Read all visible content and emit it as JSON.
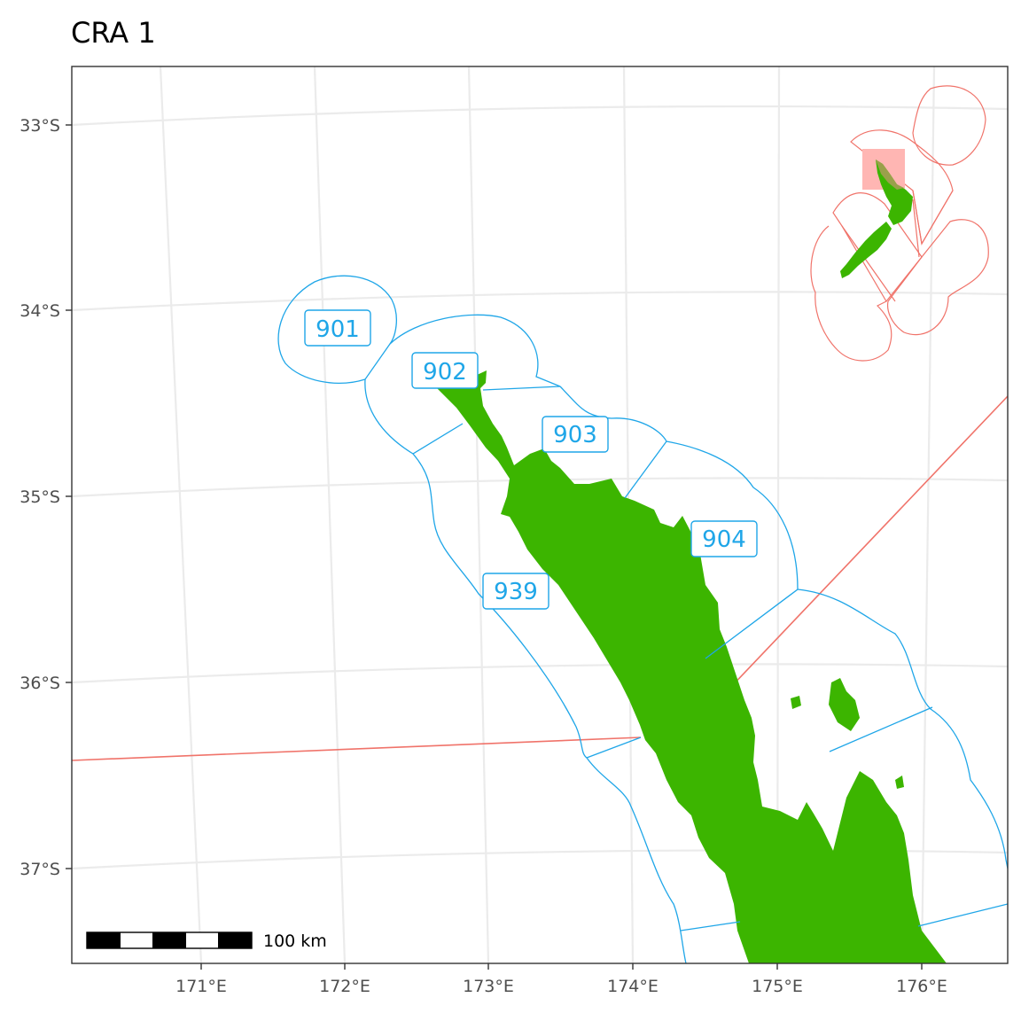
{
  "title": "CRA 1",
  "axes": {
    "y_ticks": [
      "33°S",
      "34°S",
      "35°S",
      "36°S",
      "37°S"
    ],
    "x_ticks": [
      "171°E",
      "172°E",
      "173°E",
      "174°E",
      "175°E",
      "176°E"
    ]
  },
  "area_labels": [
    "901",
    "902",
    "903",
    "904",
    "939"
  ],
  "scale_bar": {
    "label": "100 km"
  },
  "colors": {
    "land": "#3cb500",
    "area_boundary": "#1fa6e8",
    "qma_boundary": "#f0736a",
    "inset_highlight": "#ffb6b3",
    "grid": "#ebebeb",
    "panel_border": "#333333"
  }
}
